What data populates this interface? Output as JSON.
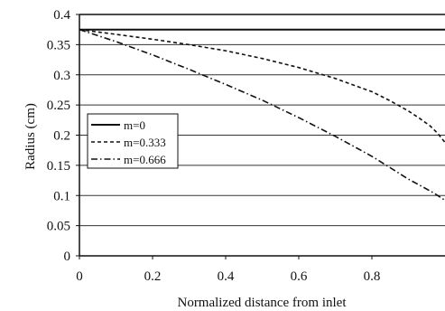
{
  "chart_data": {
    "type": "line",
    "title": "",
    "xlabel": "Normalized distance from inlet",
    "ylabel": "Radius (cm)",
    "xlim": [
      0,
      1
    ],
    "ylim": [
      0,
      0.4
    ],
    "x_ticks": [
      0,
      0.2,
      0.4,
      0.6,
      0.8
    ],
    "x_tick_labels": [
      "0",
      "0.2",
      "0.4",
      "0.6",
      "0.8"
    ],
    "y_ticks": [
      0,
      0.05,
      0.1,
      0.15,
      0.2,
      0.25,
      0.3,
      0.35,
      0.4
    ],
    "y_tick_labels": [
      "0",
      "0.05",
      "0.1",
      "0.15",
      "0.2",
      "0.25",
      "0.3",
      "0.35",
      "0.4"
    ],
    "grid": "horizontal",
    "legend_position": "left-middle",
    "series": [
      {
        "name": "m=0",
        "style": "solid",
        "x": [
          0,
          0.2,
          0.4,
          0.6,
          0.8,
          1.0
        ],
        "y": [
          0.375,
          0.375,
          0.375,
          0.375,
          0.375,
          0.375
        ]
      },
      {
        "name": "m=0.333",
        "style": "dashed",
        "x": [
          0,
          0.1,
          0.2,
          0.3,
          0.4,
          0.5,
          0.6,
          0.7,
          0.8,
          0.85,
          0.9,
          0.93,
          0.96,
          0.98,
          1.0
        ],
        "y": [
          0.375,
          0.367,
          0.359,
          0.35,
          0.34,
          0.327,
          0.312,
          0.294,
          0.272,
          0.257,
          0.24,
          0.228,
          0.215,
          0.203,
          0.188
        ]
      },
      {
        "name": "m=0.666",
        "style": "dash-dot",
        "x": [
          0,
          0.1,
          0.2,
          0.3,
          0.4,
          0.5,
          0.6,
          0.7,
          0.8,
          0.85,
          0.9,
          0.94,
          0.97,
          1.0
        ],
        "y": [
          0.375,
          0.355,
          0.333,
          0.309,
          0.284,
          0.258,
          0.229,
          0.198,
          0.165,
          0.146,
          0.127,
          0.114,
          0.104,
          0.092
        ]
      }
    ]
  }
}
